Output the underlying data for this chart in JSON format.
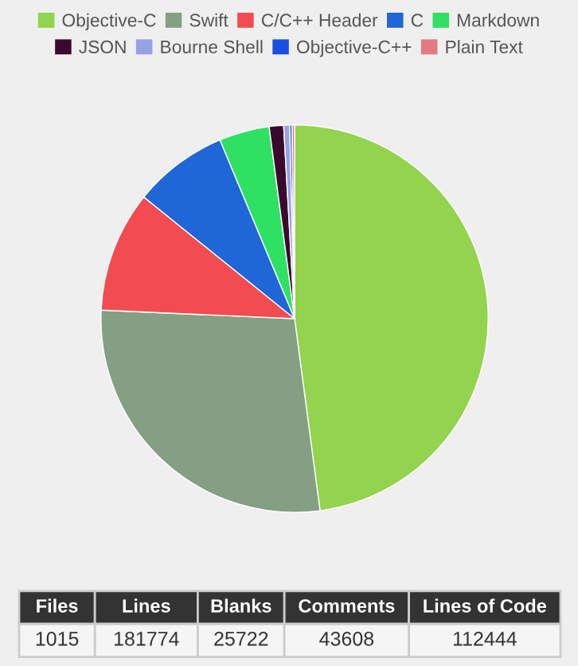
{
  "chart_data": {
    "type": "pie",
    "categories": [
      "Objective-C",
      "Swift",
      "C/C++ Header",
      "C",
      "Markdown",
      "JSON",
      "Bourne Shell",
      "Objective-C++",
      "Plain Text"
    ],
    "values": [
      47.9,
      27.8,
      10.1,
      7.9,
      4.2,
      1.2,
      0.5,
      0.2,
      0.2
    ],
    "colors": [
      "#94d34e",
      "#849f83",
      "#f24c50",
      "#1f66d6",
      "#2fe162",
      "#3a0a2e",
      "#97a1e6",
      "#1b4fe3",
      "#e27a80"
    ],
    "legend": "top",
    "annotations": [
      "Files",
      "Lines",
      "Blanks",
      "Comments",
      "Lines of Code",
      "1015",
      "181774",
      "25722",
      "43608",
      "112444"
    ]
  }
}
